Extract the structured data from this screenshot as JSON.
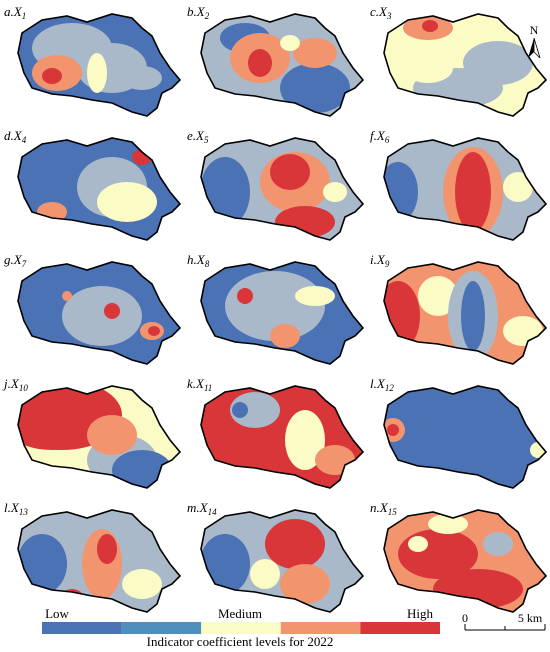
{
  "panels": [
    {
      "prefix": "a.X",
      "sub": "1"
    },
    {
      "prefix": "b.X",
      "sub": "2"
    },
    {
      "prefix": "c.X",
      "sub": "3"
    },
    {
      "prefix": "d.X",
      "sub": "4"
    },
    {
      "prefix": "e.X",
      "sub": "5"
    },
    {
      "prefix": "f.X",
      "sub": "6"
    },
    {
      "prefix": "g.X",
      "sub": "7"
    },
    {
      "prefix": "h.X",
      "sub": "8"
    },
    {
      "prefix": "i.X",
      "sub": "9"
    },
    {
      "prefix": "j.X",
      "sub": "10"
    },
    {
      "prefix": "k.X",
      "sub": "11"
    },
    {
      "prefix": "l.X",
      "sub": "12"
    },
    {
      "prefix": "l.X",
      "sub": "13"
    },
    {
      "prefix": "m.X",
      "sub": "14"
    },
    {
      "prefix": "n.X",
      "sub": "15"
    }
  ],
  "legend": {
    "low": "Low",
    "medium": "Medium",
    "high": "High",
    "title": "Indicator coefficient levels for 2022",
    "colors": [
      "#4a72b5",
      "#4f8fbe",
      "#fbfbc6",
      "#f2956e",
      "#d9363a"
    ]
  },
  "scale": {
    "start": "0",
    "end": "5 km"
  },
  "north": "N"
}
